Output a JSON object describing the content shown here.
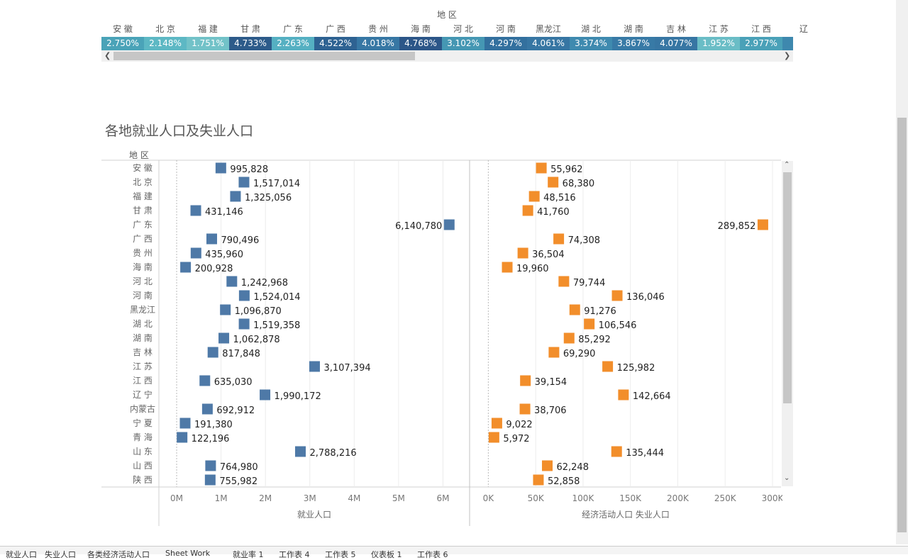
{
  "top_table": {
    "header_label": "地 区",
    "columns": [
      "安 徽",
      "北 京",
      "福 建",
      "甘 肃",
      "广 东",
      "广 西",
      "贵 州",
      "海 南",
      "河 北",
      "河 南",
      "黑龙江",
      "湖 北",
      "湖 南",
      "吉 林",
      "江 苏",
      "江 西",
      "辽"
    ],
    "values": [
      "2.750%",
      "2.148%",
      "1.751%",
      "4.733%",
      "2.263%",
      "4.522%",
      "4.018%",
      "4.768%",
      "3.102%",
      "4.297%",
      "4.061%",
      "3.374%",
      "3.867%",
      "4.077%",
      "1.952%",
      "2.977%",
      ""
    ],
    "colors": [
      "#4aa3b8",
      "#5db8c4",
      "#72c2c8",
      "#2d5b8a",
      "#55b0c2",
      "#2e6292",
      "#3777a4",
      "#2c5688",
      "#4597b3",
      "#33709e",
      "#3776a3",
      "#3f8aaf",
      "#387aa6",
      "#3776a3",
      "#6abdc6",
      "#4aa1b8",
      "#3e88ae"
    ]
  },
  "chart_data": {
    "type": "bar",
    "title": "各地就业人口及失业人口",
    "row_header": "地 区",
    "categories": [
      "安 徽",
      "北 京",
      "福 建",
      "甘 肃",
      "广 东",
      "广 西",
      "贵 州",
      "海 南",
      "河 北",
      "河 南",
      "黑龙江",
      "湖 北",
      "湖 南",
      "吉 林",
      "江 苏",
      "江 西",
      "辽 宁",
      "内蒙古",
      "宁 夏",
      "青 海",
      "山 东",
      "山 西",
      "陕 西"
    ],
    "series": [
      {
        "name": "就业人口",
        "color": "#4e79a7",
        "values": [
          995828,
          1517014,
          1325056,
          431146,
          6140780,
          790496,
          435960,
          200928,
          1242968,
          1524014,
          1096870,
          1519358,
          1062878,
          817848,
          3107394,
          635030,
          1990172,
          692912,
          191380,
          122196,
          2788216,
          764980,
          755982
        ],
        "labels": [
          "995,828",
          "1,517,014",
          "1,325,056",
          "431,146",
          "6,140,780",
          "790,496",
          "435,960",
          "200,928",
          "1,242,968",
          "1,524,014",
          "1,096,870",
          "1,519,358",
          "1,062,878",
          "817,848",
          "3,107,394",
          "635,030",
          "1,990,172",
          "692,912",
          "191,380",
          "122,196",
          "2,788,216",
          "764,980",
          "755,982"
        ],
        "axis_ticks": [
          "0M",
          "1M",
          "2M",
          "3M",
          "4M",
          "5M",
          "6M"
        ],
        "axis_tick_values": [
          0,
          1000000,
          2000000,
          3000000,
          4000000,
          5000000,
          6000000
        ],
        "xlim": [
          -400000,
          6600000
        ],
        "xlabel": "就业人口"
      },
      {
        "name": "经济活动人口 失业人口",
        "color": "#f28e2b",
        "values": [
          55962,
          68380,
          48516,
          41760,
          289852,
          74308,
          36504,
          19960,
          79744,
          136046,
          91276,
          106546,
          85292,
          69290,
          125982,
          39154,
          142664,
          38706,
          9022,
          5972,
          135444,
          62248,
          52858
        ],
        "labels": [
          "55,962",
          "68,380",
          "48,516",
          "41,760",
          "289,852",
          "74,308",
          "36,504",
          "19,960",
          "79,744",
          "136,046",
          "91,276",
          "106,546",
          "85,292",
          "69,290",
          "125,982",
          "39,154",
          "142,664",
          "38,706",
          "9,022",
          "5,972",
          "135,444",
          "62,248",
          "52,858"
        ],
        "axis_ticks": [
          "0K",
          "50K",
          "100K",
          "150K",
          "200K",
          "250K",
          "300K"
        ],
        "axis_tick_values": [
          0,
          50000,
          100000,
          150000,
          200000,
          250000,
          300000
        ],
        "xlim": [
          -19000,
          309000
        ],
        "xlabel": "经济活动人口 失业人口"
      }
    ]
  },
  "tabs": [
    "就业人口",
    "失业人口",
    "各类经济活动人口",
    "Sheet Work",
    "就业率 1",
    "工作表 4",
    "工作表 5",
    "仪表板 1",
    "工作表 6"
  ]
}
